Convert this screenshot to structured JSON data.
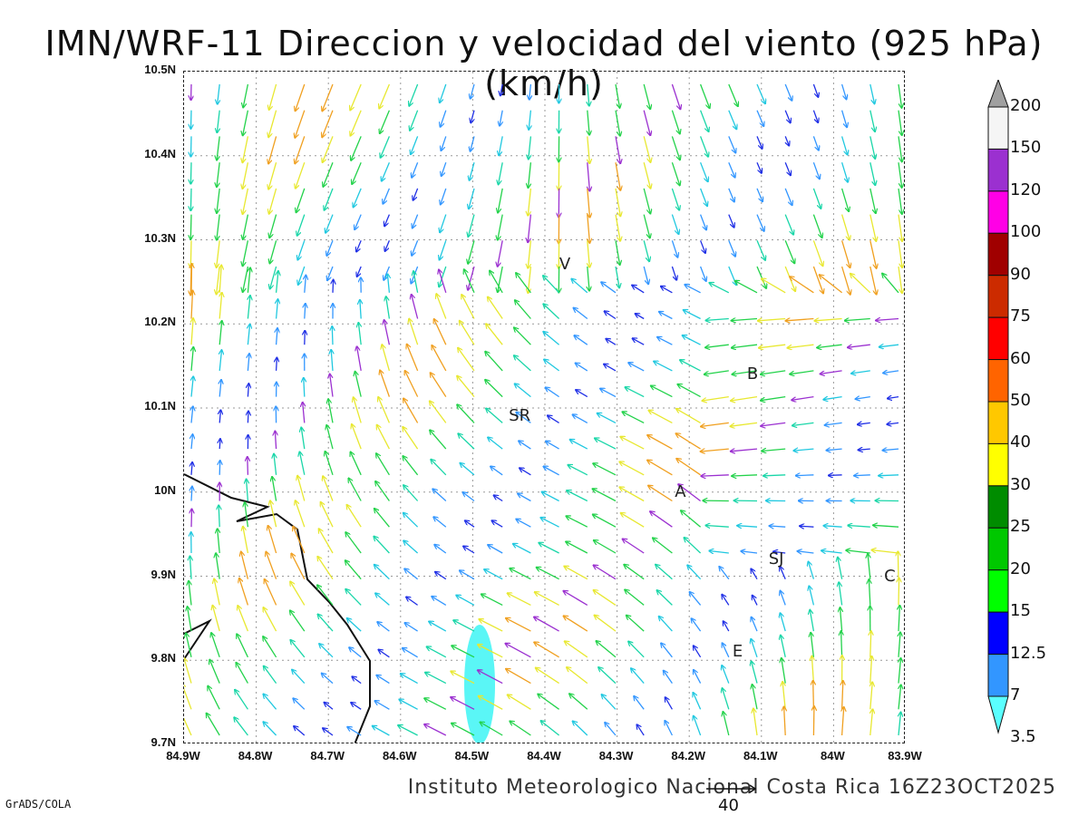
{
  "title": "IMN/WRF-11 Direccion y velocidad del viento (925 hPa)(km/h)",
  "footer": {
    "credit": "Instituto Meteorologico Nacional Costa Rica 16Z23OCT2025",
    "software": "GrADS/COLA",
    "reference_vector_label": "40"
  },
  "axes": {
    "lat_labels": [
      "10.5N",
      "10.4N",
      "10.3N",
      "10.2N",
      "10.1N",
      "10N",
      "9.9N",
      "9.8N",
      "9.7N"
    ],
    "lon_labels": [
      "84.9W",
      "84.8W",
      "84.7W",
      "84.6W",
      "84.5W",
      "84.4W",
      "84.3W",
      "84.2W",
      "84.1W",
      "84W",
      "83.9W"
    ],
    "lat_range": [
      9.7,
      10.5
    ],
    "lon_range": [
      -84.9,
      -83.9
    ],
    "grid": true
  },
  "cities": [
    {
      "label": "V",
      "lon": -84.37,
      "lat": 10.27
    },
    {
      "label": "SR",
      "lon": -84.44,
      "lat": 10.09
    },
    {
      "label": "B",
      "lon": -84.11,
      "lat": 10.14
    },
    {
      "label": "A",
      "lon": -84.21,
      "lat": 10.0
    },
    {
      "label": "SJ",
      "lon": -84.08,
      "lat": 9.92
    },
    {
      "label": "C",
      "lon": -83.92,
      "lat": 9.9
    },
    {
      "label": "E",
      "lon": -84.13,
      "lat": 9.81
    }
  ],
  "colorbar": {
    "labels": [
      "200",
      "150",
      "120",
      "100",
      "90",
      "75",
      "60",
      "50",
      "40",
      "30",
      "25",
      "20",
      "15",
      "12.5",
      "7",
      "3.5"
    ],
    "colors": [
      "#a0a0a0",
      "#f5f5f5",
      "#9b30d0",
      "#ff00e6",
      "#a00000",
      "#cc2b00",
      "#ff0000",
      "#ff6400",
      "#ffc800",
      "#ffff00",
      "#008c00",
      "#00c800",
      "#00ff00",
      "#0000ff",
      "#3296ff",
      "#5affff"
    ]
  },
  "colors": {
    "coast": "#111111",
    "lake_fill": "#5af6f6",
    "grid": "#9a9a9a"
  }
}
